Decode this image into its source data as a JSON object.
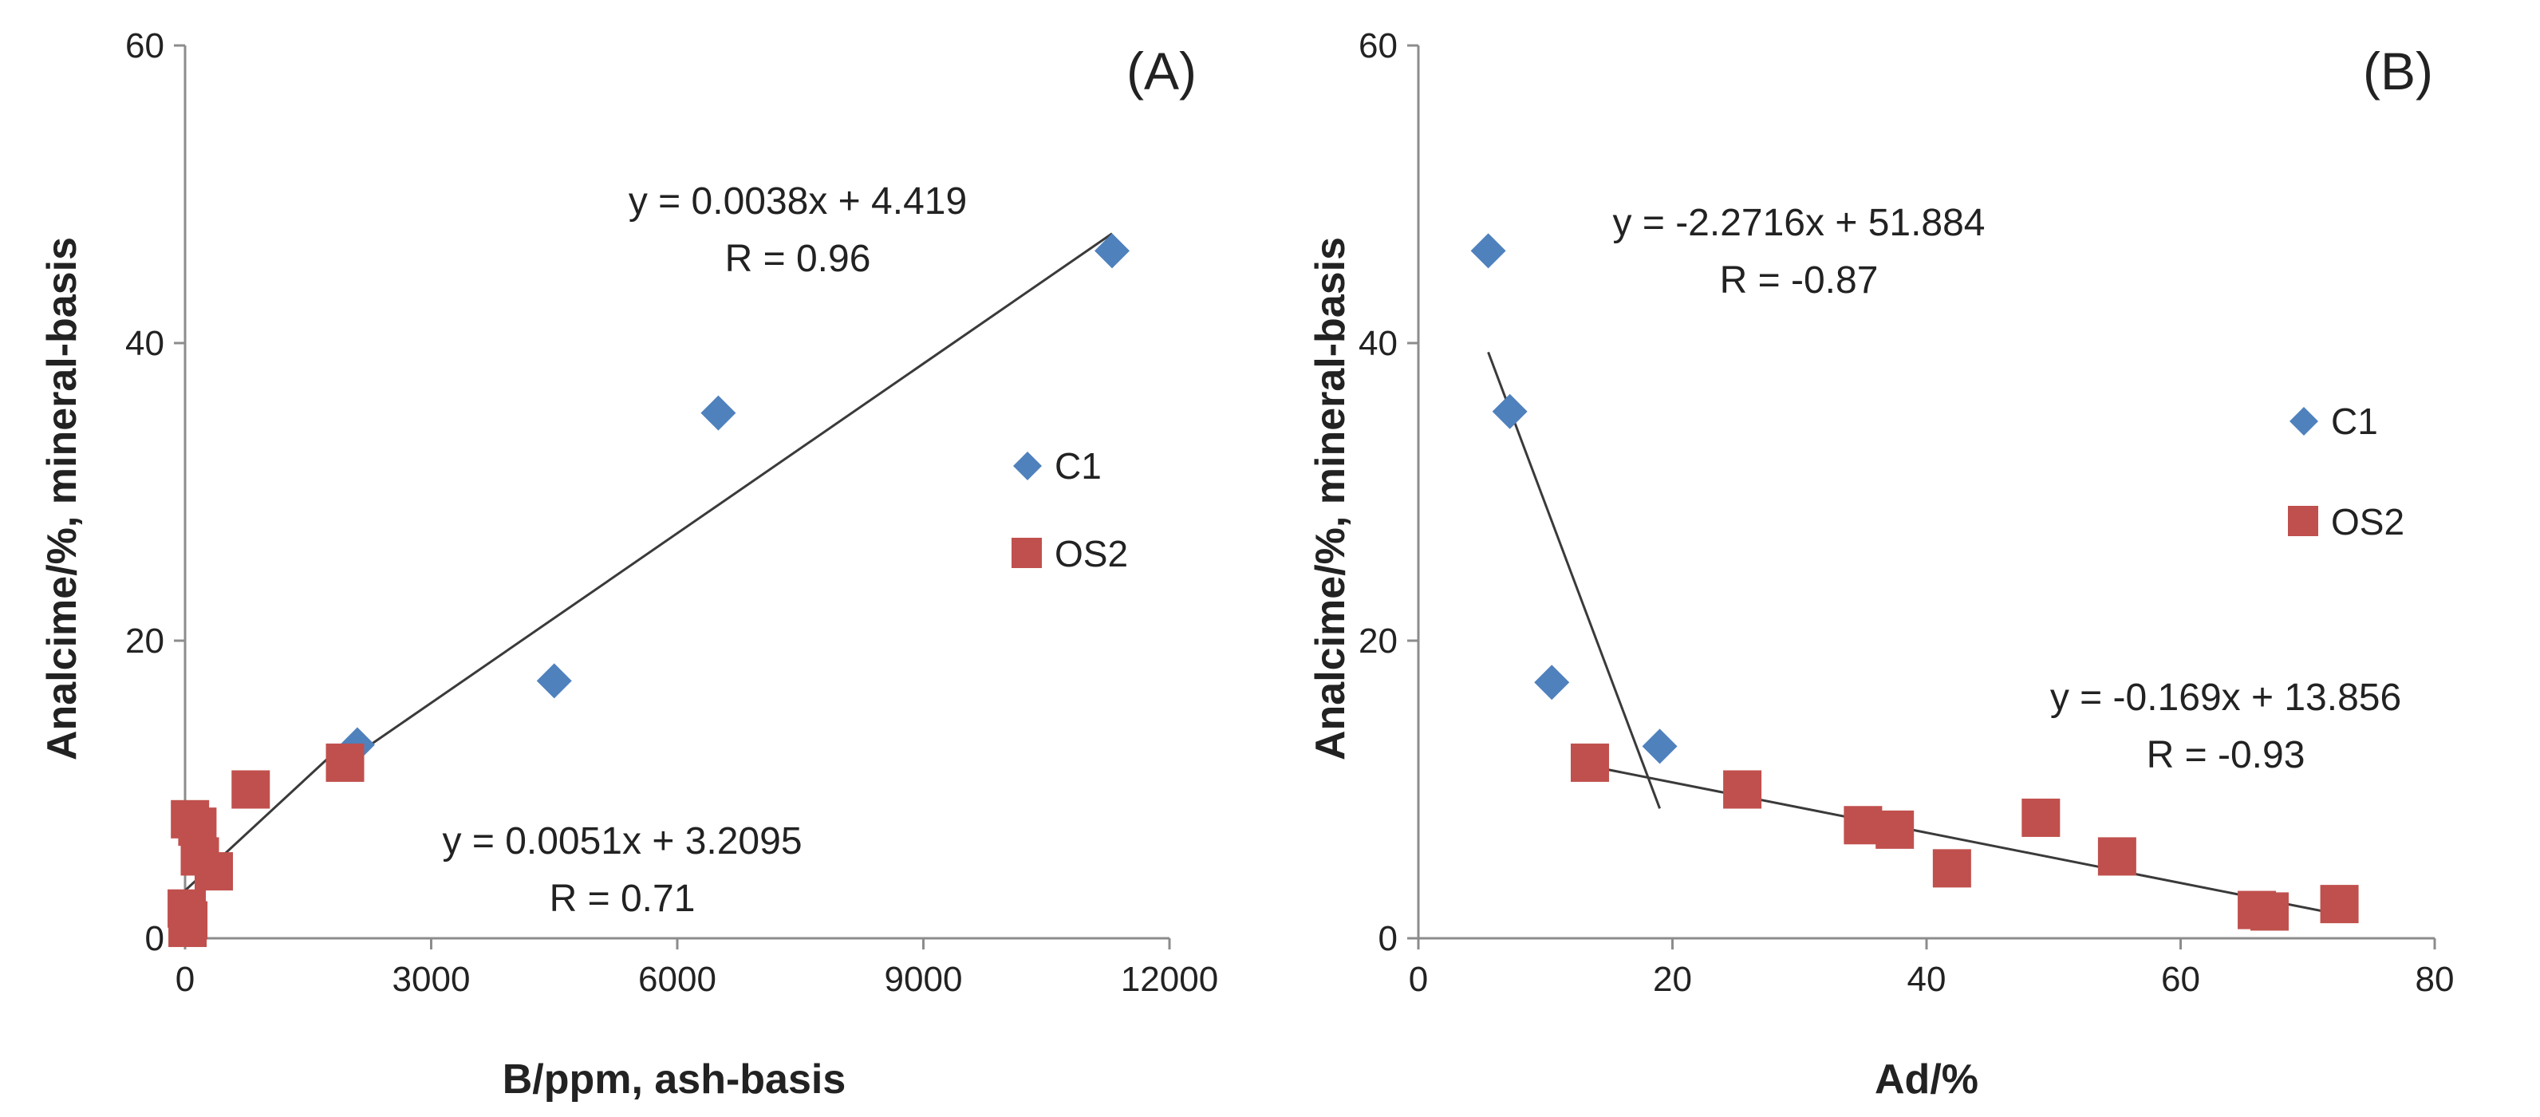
{
  "chart_data": [
    {
      "type": "scatter",
      "panel_label": "(A)",
      "xlabel": "B/ppm, ash-basis",
      "ylabel": "Analcime/%, mineral-basis",
      "xlim": [
        0,
        12000
      ],
      "ylim": [
        0,
        60
      ],
      "x_ticks": [
        0,
        3000,
        6000,
        9000,
        12000
      ],
      "y_ticks": [
        0,
        20,
        40,
        60
      ],
      "x_tick_labels": [
        "0",
        "3000",
        "6000",
        "9000",
        "12000"
      ],
      "y_tick_labels": [
        "0",
        "20",
        "40",
        "60"
      ],
      "grid": false,
      "legend_position": "right",
      "series": [
        {
          "name": "C1",
          "marker": "diamond",
          "color": "#4F81BD",
          "points": [
            {
              "x": 2100,
              "y": 13.0
            },
            {
              "x": 4500,
              "y": 17.3
            },
            {
              "x": 6500,
              "y": 35.3
            },
            {
              "x": 11300,
              "y": 46.2
            }
          ]
        },
        {
          "name": "OS2",
          "marker": "square",
          "color": "#C0504D",
          "points": [
            {
              "x": 20,
              "y": 2.0
            },
            {
              "x": 30,
              "y": 0.7
            },
            {
              "x": 40,
              "y": 1.2
            },
            {
              "x": 60,
              "y": 8.0
            },
            {
              "x": 150,
              "y": 7.5
            },
            {
              "x": 180,
              "y": 5.5
            },
            {
              "x": 350,
              "y": 4.5
            },
            {
              "x": 800,
              "y": 10.0
            },
            {
              "x": 1950,
              "y": 11.8
            }
          ]
        }
      ],
      "trendlines": [
        {
          "series": "C1",
          "x_range": [
            2100,
            11300
          ],
          "slope": 0.0038,
          "intercept": 4.419
        },
        {
          "series": "OS2",
          "x_range": [
            0,
            2000
          ],
          "slope": 0.0051,
          "intercept": 3.2095
        }
      ],
      "annotations": [
        {
          "line1": "y = 0.0038x + 4.419",
          "line2": "R = 0.96"
        },
        {
          "line1": "y = 0.0051x + 3.2095",
          "line2": "R = 0.71"
        }
      ]
    },
    {
      "type": "scatter",
      "panel_label": "(B)",
      "xlabel": "Ad/%",
      "ylabel": "Analcime/%, mineral-basis",
      "xlim": [
        0,
        80
      ],
      "ylim": [
        0,
        60
      ],
      "x_ticks": [
        0,
        20,
        40,
        60,
        80
      ],
      "y_ticks": [
        0,
        20,
        40,
        60
      ],
      "x_tick_labels": [
        "0",
        "20",
        "40",
        "60",
        "80"
      ],
      "y_tick_labels": [
        "0",
        "20",
        "40",
        "60"
      ],
      "grid": false,
      "legend_position": "right",
      "series": [
        {
          "name": "C1",
          "marker": "diamond",
          "color": "#4F81BD",
          "points": [
            {
              "x": 5.5,
              "y": 46.2
            },
            {
              "x": 7.2,
              "y": 35.4
            },
            {
              "x": 10.5,
              "y": 17.2
            },
            {
              "x": 19.0,
              "y": 12.9
            }
          ]
        },
        {
          "name": "OS2",
          "marker": "square",
          "color": "#C0504D",
          "points": [
            {
              "x": 13.5,
              "y": 11.8
            },
            {
              "x": 25.5,
              "y": 10.0
            },
            {
              "x": 35.0,
              "y": 7.6
            },
            {
              "x": 37.5,
              "y": 7.3
            },
            {
              "x": 42.0,
              "y": 4.7
            },
            {
              "x": 49.0,
              "y": 8.1
            },
            {
              "x": 55.0,
              "y": 5.5
            },
            {
              "x": 66.0,
              "y": 1.9
            },
            {
              "x": 67.0,
              "y": 1.8
            },
            {
              "x": 72.5,
              "y": 2.3
            }
          ]
        }
      ],
      "trendlines": [
        {
          "series": "C1",
          "x_range": [
            5.5,
            19.0
          ],
          "slope": -2.2716,
          "intercept": 51.884
        },
        {
          "series": "OS2",
          "x_range": [
            13.5,
            72.5
          ],
          "slope": -0.169,
          "intercept": 13.856
        }
      ],
      "annotations": [
        {
          "line1": "y = -2.2716x + 51.884",
          "line2": "R = -0.87"
        },
        {
          "line1": "y = -0.169x + 13.856",
          "line2": "R = -0.93"
        }
      ]
    }
  ]
}
